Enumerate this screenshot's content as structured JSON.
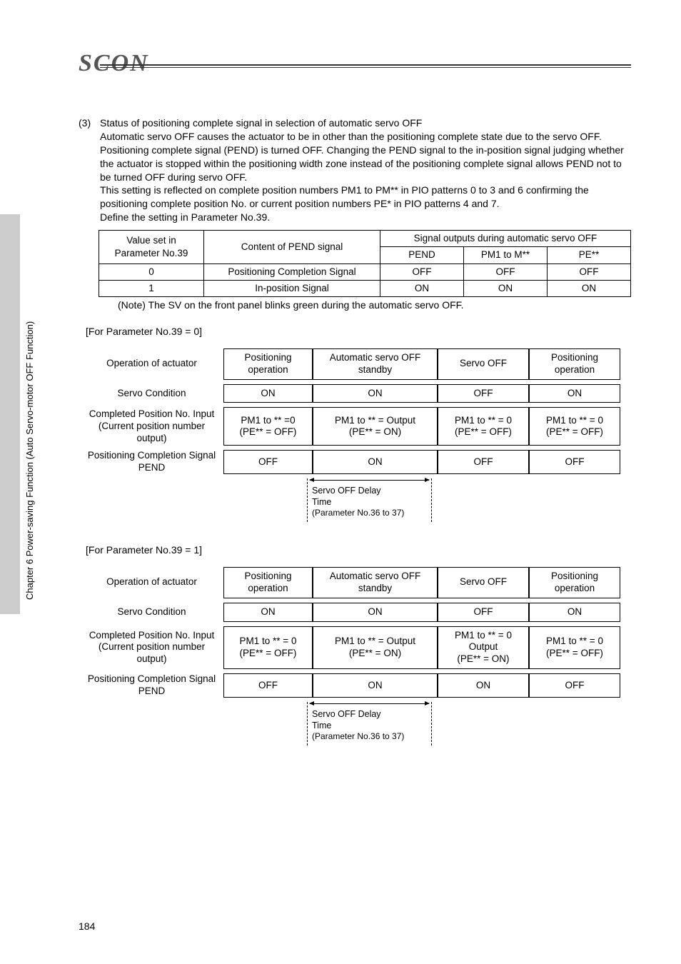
{
  "logo": "SCON",
  "sidebar_text": "Chapter 6 Power-saving Function (Auto Servo-motor OFF Function)",
  "page_number": "184",
  "section": {
    "num": "(3)",
    "title": "Status of positioning complete signal in selection of automatic servo OFF",
    "para1": "Automatic servo OFF causes the actuator to be in other than the positioning complete state due to the servo OFF. Positioning complete signal (PEND) is turned OFF. Changing the PEND signal to the in-position signal judging whether the actuator is stopped within the positioning width zone instead of the positioning complete signal allows PEND not to be turned OFF during servo OFF.",
    "para2": "This setting is reflected on complete position numbers PM1 to PM** in PIO patterns 0 to 3 and 6 confirming the positioning complete position No. or current position numbers PE* in PIO patterns 4 and 7.",
    "para3": "Define the setting in Parameter No.39."
  },
  "table1": {
    "h_left_top": "Value set in",
    "h_left_bot": "Parameter No.39",
    "h_content": "Content of PEND signal",
    "h_sig": "Signal outputs during automatic servo OFF",
    "h_c1": "PEND",
    "h_c2": "PM1 to M**",
    "h_c3": "PE**",
    "rows": [
      {
        "v": "0",
        "content": "Positioning Completion Signal",
        "c1": "OFF",
        "c2": "OFF",
        "c3": "OFF"
      },
      {
        "v": "1",
        "content": "In-position Signal",
        "c1": "ON",
        "c2": "ON",
        "c3": "ON"
      }
    ]
  },
  "note": "(Note) The SV on the front panel blinks green during the automatic servo OFF.",
  "timing0": {
    "heading": "[For Parameter No.39 = 0]",
    "rows": [
      {
        "label": "Operation of actuator",
        "c": [
          "Positioning operation",
          "Automatic servo OFF standby",
          "Servo OFF",
          "Positioning operation"
        ]
      },
      {
        "label": "Servo Condition",
        "c": [
          "ON",
          "ON",
          "OFF",
          "ON"
        ]
      },
      {
        "label": "Completed Position No. Input (Current position number output)",
        "c": [
          "PM1 to ** =0\n(PE** = OFF)",
          "PM1 to ** = Output\n(PE** = ON)",
          "PM1 to ** = 0\n(PE** = OFF)",
          "PM1 to ** = 0\n(PE** = OFF)"
        ]
      },
      {
        "label": "Positioning Completion Signal PEND",
        "c": [
          "OFF",
          "ON",
          "OFF",
          "OFF"
        ]
      }
    ],
    "delay": {
      "l1": "Servo OFF Delay",
      "l2": "Time",
      "l3": "(Parameter No.36 to 37)"
    }
  },
  "timing1": {
    "heading": "[For Parameter No.39 = 1]",
    "rows": [
      {
        "label": "Operation of actuator",
        "c": [
          "Positioning operation",
          "Automatic servo OFF standby",
          "Servo OFF",
          "Positioning operation"
        ]
      },
      {
        "label": "Servo Condition",
        "c": [
          "ON",
          "ON",
          "OFF",
          "ON"
        ]
      },
      {
        "label": "Completed Position No. Input (Current position number output)",
        "c": [
          "PM1 to ** = 0\n(PE** = OFF)",
          "PM1 to ** = Output\n(PE** = ON)",
          "PM1 to ** = 0\nOutput\n(PE** = ON)",
          "PM1 to ** = 0\n(PE** = OFF)"
        ]
      },
      {
        "label": "Positioning Completion Signal PEND",
        "c": [
          "OFF",
          "ON",
          "ON",
          "OFF"
        ]
      }
    ],
    "delay": {
      "l1": "Servo OFF Delay",
      "l2": "Time",
      "l3": "(Parameter No.36 to 37)"
    }
  }
}
